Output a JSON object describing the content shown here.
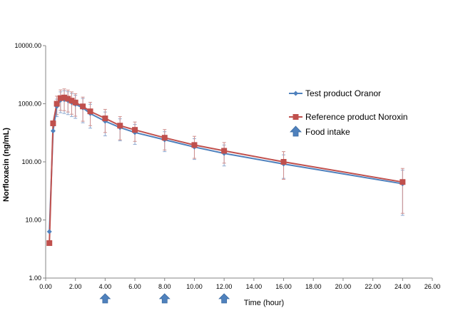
{
  "chart_data": {
    "type": "line",
    "title": "",
    "xlabel": "Time (hour)",
    "ylabel": "Norfloxacin (ng/mL)",
    "xlim": [
      0,
      26
    ],
    "ylim": [
      1,
      10000
    ],
    "y_scale": "log",
    "x_ticks": [
      "0.00",
      "2.00",
      "4.00",
      "6.00",
      "8.00",
      "10.00",
      "12.00",
      "14.00",
      "16.00",
      "18.00",
      "20.00",
      "22.00",
      "24.00",
      "26.00"
    ],
    "y_ticks": [
      "1.00",
      "10.00",
      "100.00",
      "1000.00",
      "10000.00"
    ],
    "grid": false,
    "legend_position": "right",
    "series": [
      {
        "name": "Test product Oranor",
        "color": "#4f81bd",
        "marker": "diamond",
        "x": [
          0.25,
          0.5,
          0.75,
          1,
          1.25,
          1.5,
          1.75,
          2,
          2.5,
          3,
          4,
          5,
          6,
          8,
          10,
          12,
          16,
          24
        ],
        "y": [
          6.3,
          340,
          900,
          1150,
          1180,
          1130,
          1050,
          980,
          850,
          680,
          500,
          390,
          320,
          240,
          180,
          140,
          92,
          42
        ],
        "err": [
          0,
          0,
          300,
          450,
          500,
          480,
          450,
          420,
          380,
          300,
          220,
          160,
          120,
          90,
          70,
          55,
          40,
          30
        ]
      },
      {
        "name": "Reference product Noroxin",
        "color": "#c0504d",
        "marker": "square",
        "x": [
          0.25,
          0.5,
          0.75,
          1,
          1.25,
          1.5,
          1.75,
          2,
          2.5,
          3,
          4,
          5,
          6,
          8,
          10,
          12,
          16,
          24
        ],
        "y": [
          4,
          460,
          1000,
          1250,
          1280,
          1220,
          1130,
          1050,
          900,
          740,
          560,
          420,
          355,
          260,
          195,
          155,
          100,
          45
        ],
        "err": [
          0,
          0,
          350,
          480,
          520,
          500,
          470,
          440,
          400,
          320,
          240,
          180,
          130,
          100,
          80,
          60,
          50,
          32
        ]
      }
    ],
    "food_intake": {
      "name": "Food intake",
      "times": [
        4,
        8,
        12
      ],
      "color": "#4f81bd"
    }
  }
}
